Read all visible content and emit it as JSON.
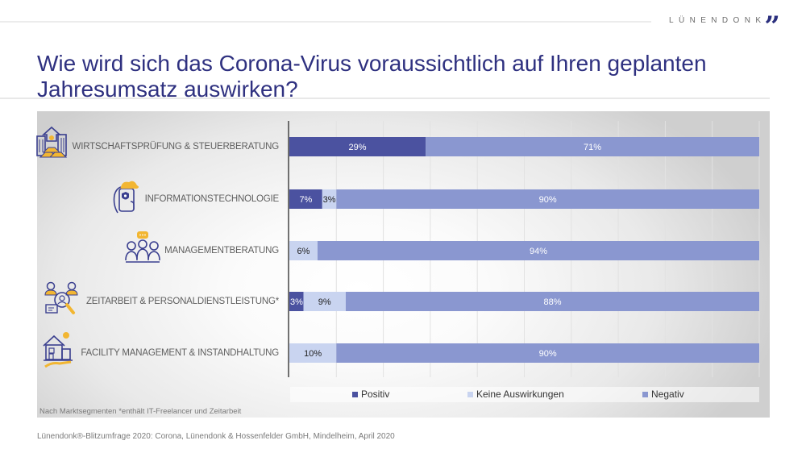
{
  "brand": {
    "name": "LÜNENDONK",
    "mark": "”"
  },
  "title": "Wie wird sich das Corona-Virus voraussichtlich auf Ihren geplanten Jahresumsatz auswirken?",
  "colors": {
    "positiv": "#4b52a0",
    "keine": "#c9d4f0",
    "negativ": "#8a97d0",
    "title": "#2f3180"
  },
  "chart_data": {
    "type": "bar",
    "orientation": "horizontal",
    "stacked": true,
    "title": "Wie wird sich das Corona-Virus voraussichtlich auf Ihren geplanten Jahresumsatz auswirken?",
    "xlabel": "",
    "ylabel": "",
    "xlim": [
      0,
      100
    ],
    "grid": true,
    "legend_position": "bottom",
    "categories": [
      "WIRTSCHAFTSPRÜFUNG & STEUERBERATUNG",
      "INFORMATIONSTECHNOLOGIE",
      "MANAGEMENTBERATUNG",
      "ZEITARBEIT & PERSONALDIENSTLEISTUNG*",
      "FACILITY MANAGEMENT & INSTANDHALTUNG"
    ],
    "icons": [
      "building-gold-icon",
      "smartphone-cloud-icon",
      "team-meeting-icon",
      "recruiting-search-icon",
      "house-hand-icon"
    ],
    "series": [
      {
        "name": "Positiv",
        "values": [
          29,
          7,
          0,
          3,
          0
        ],
        "labels": [
          "29%",
          "7%",
          "",
          "3%",
          ""
        ]
      },
      {
        "name": "Keine Auswirkungen",
        "values": [
          0,
          3,
          6,
          9,
          10
        ],
        "labels": [
          "",
          "3%",
          "6%",
          "9%",
          "10%"
        ]
      },
      {
        "name": "Negativ",
        "values": [
          71,
          90,
          94,
          88,
          90
        ],
        "labels": [
          "71%",
          "90%",
          "94%",
          "88%",
          "90%"
        ]
      }
    ]
  },
  "legend": [
    "Positiv",
    "Keine Auswirkungen",
    "Negativ"
  ],
  "note": "Nach Marktsegmenten *enthält IT-Freelancer und Zeitarbeit",
  "source": "Lünendonk®-Blitzumfrage 2020: Corona, Lünendonk & Hossenfelder GmbH, Mindelheim, April 2020"
}
